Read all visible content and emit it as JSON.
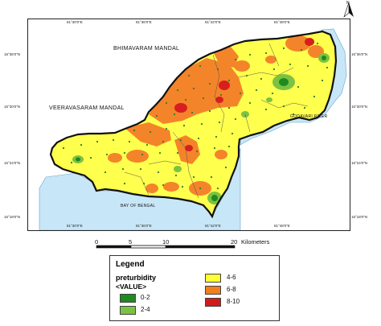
{
  "map": {
    "coord_labels_top": [
      "81°30'0\"E",
      "81°36'0\"E",
      "81°42'0\"E",
      "81°48'0\"E"
    ],
    "coord_labels_bottom": [
      "81°30'0\"E",
      "81°36'0\"E",
      "81°42'0\"E",
      "81°48'0\"E"
    ],
    "coord_labels_left": [
      "16°36'0\"N",
      "16°30'0\"N",
      "16°24'0\"N",
      "16°18'0\"N"
    ],
    "coord_labels_right": [
      "16°36'0\"N",
      "16°30'0\"N",
      "16°24'0\"N",
      "16°18'0\"N"
    ],
    "places": {
      "bhimavaram": "BHIMAVARAM MANDAL",
      "veeravasaram": "VEERAVASARAM MANDAL",
      "godavari": "GODAVARI RIVER",
      "bay": "BAY OF BENGAL"
    },
    "north_label": "N"
  },
  "scale": {
    "ticks": [
      "0",
      "5",
      "10",
      "20"
    ],
    "unit": "Kilometers"
  },
  "legend": {
    "title": "Legend",
    "field": "preturbidity",
    "value_label": "<VALUE>",
    "classes": [
      {
        "label": "0-2",
        "color": "#1f8a1f"
      },
      {
        "label": "2-4",
        "color": "#7cc242"
      },
      {
        "label": "4-6",
        "color": "#ffff33"
      },
      {
        "label": "6-8",
        "color": "#f07f1d"
      },
      {
        "label": "8-10",
        "color": "#d11a1a"
      }
    ]
  },
  "colors": {
    "water": "#c7e6f7",
    "base": "#ffff4d",
    "orange": "#f4842a",
    "red": "#d81e1e",
    "green_dark": "#1f8a1f",
    "green_light": "#7cc242",
    "sample_point": "#2e7d32"
  }
}
